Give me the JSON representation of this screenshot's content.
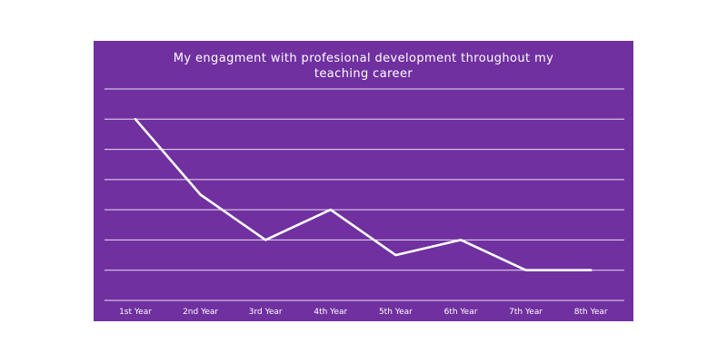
{
  "colors": {
    "panel": "#7030a0",
    "line": "#ffffff",
    "grid": "#ffffff",
    "page": "#ffffff"
  },
  "chart_data": {
    "type": "line",
    "title_lines": [
      "My engagment with profesional development throughout my",
      "teaching career"
    ],
    "categories": [
      "1st Year",
      "2nd Year",
      "3rd Year",
      "4th Year",
      "5th Year",
      "6th Year",
      "7th Year",
      "8th Year"
    ],
    "series": [
      {
        "values": [
          6,
          3.5,
          2,
          3,
          1.5,
          2,
          1,
          1
        ]
      }
    ],
    "ylim": [
      0,
      7
    ],
    "grid": true,
    "y_tick_labels_shown": false
  }
}
